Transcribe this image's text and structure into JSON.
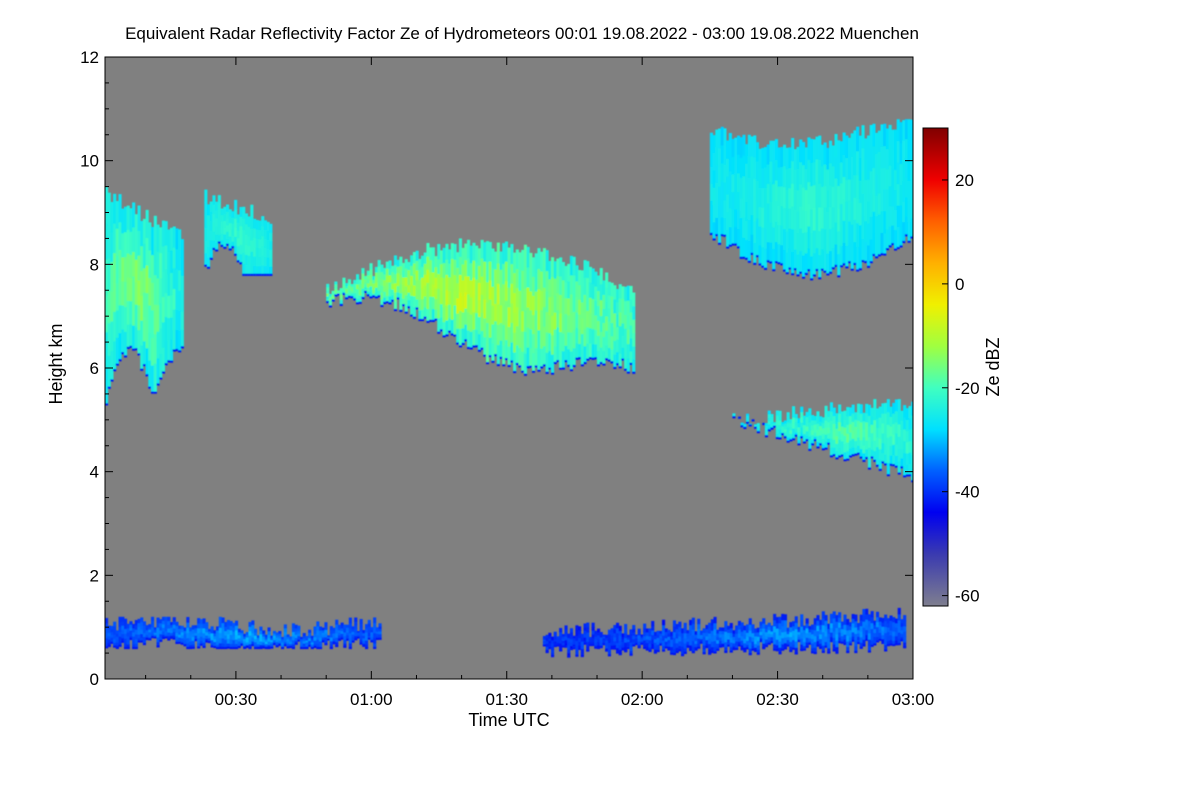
{
  "chart_data": {
    "type": "heatmap",
    "title": "Equivalent Radar Reflectivity Factor Ze of Hydrometeors   00:01 19.08.2022 - 03:00 19.08.2022 Muenchen",
    "xlabel": "Time UTC",
    "ylabel": "Height km",
    "colorbar_label": "Ze dBZ",
    "xlim_minutes": [
      1,
      180
    ],
    "ylim_km": [
      0,
      12
    ],
    "x_ticks": [
      {
        "value": 30,
        "label": "00:30"
      },
      {
        "value": 60,
        "label": "01:00"
      },
      {
        "value": 90,
        "label": "01:30"
      },
      {
        "value": 120,
        "label": "02:00"
      },
      {
        "value": 150,
        "label": "02:30"
      },
      {
        "value": 180,
        "label": "03:00"
      }
    ],
    "y_ticks": [
      {
        "value": 0,
        "label": "0"
      },
      {
        "value": 2,
        "label": "2"
      },
      {
        "value": 4,
        "label": "4"
      },
      {
        "value": 6,
        "label": "6"
      },
      {
        "value": 8,
        "label": "8"
      },
      {
        "value": 10,
        "label": "10"
      },
      {
        "value": 12,
        "label": "12"
      }
    ],
    "colorbar_range_dbz": [
      -62,
      30
    ],
    "colorbar_ticks": [
      {
        "value": 20,
        "label": "20"
      },
      {
        "value": 0,
        "label": "0"
      },
      {
        "value": -20,
        "label": "-20"
      },
      {
        "value": -40,
        "label": "-40"
      },
      {
        "value": -60,
        "label": "-60"
      }
    ],
    "colormap": [
      {
        "dbz": -62,
        "color": "#7f7f8f"
      },
      {
        "dbz": -52,
        "color": "#3a3ab0"
      },
      {
        "dbz": -44,
        "color": "#0000f0"
      },
      {
        "dbz": -36,
        "color": "#0060ff"
      },
      {
        "dbz": -28,
        "color": "#00e0ff"
      },
      {
        "dbz": -20,
        "color": "#40ffc0"
      },
      {
        "dbz": -12,
        "color": "#a0ff40"
      },
      {
        "dbz": -4,
        "color": "#f0f000"
      },
      {
        "dbz": 4,
        "color": "#ffb000"
      },
      {
        "dbz": 12,
        "color": "#ff6000"
      },
      {
        "dbz": 20,
        "color": "#f00000"
      },
      {
        "dbz": 30,
        "color": "#800000"
      }
    ],
    "background_color": "#808080",
    "echo_regions": [
      {
        "name": "cirrus-left",
        "x": [
          1,
          18
        ],
        "y": [
          5.3,
          9.5
        ],
        "dbz_range": [
          -30,
          -6
        ]
      },
      {
        "name": "cirrus-patch-upper",
        "x": [
          23,
          38
        ],
        "y": [
          7.8,
          9.5
        ],
        "dbz_range": [
          -28,
          -18
        ]
      },
      {
        "name": "ice-cloud-main",
        "x": [
          50,
          118
        ],
        "y": [
          5.6,
          8.5
        ],
        "dbz_range": [
          -28,
          0
        ]
      },
      {
        "name": "cirrus-upper-right",
        "x": [
          135,
          180
        ],
        "y": [
          7.4,
          10.8
        ],
        "dbz_range": [
          -30,
          -18
        ]
      },
      {
        "name": "midlevel-layer-right",
        "x": [
          140,
          180
        ],
        "y": [
          3.8,
          5.4
        ],
        "dbz_range": [
          -30,
          -12
        ]
      },
      {
        "name": "boundary-layer-left",
        "x": [
          1,
          62
        ],
        "y": [
          0.6,
          1.2
        ],
        "dbz_range": [
          -42,
          -26
        ]
      },
      {
        "name": "boundary-layer-right",
        "x": [
          98,
          178
        ],
        "y": [
          0.2,
          1.4
        ],
        "dbz_range": [
          -44,
          -26
        ]
      }
    ]
  }
}
